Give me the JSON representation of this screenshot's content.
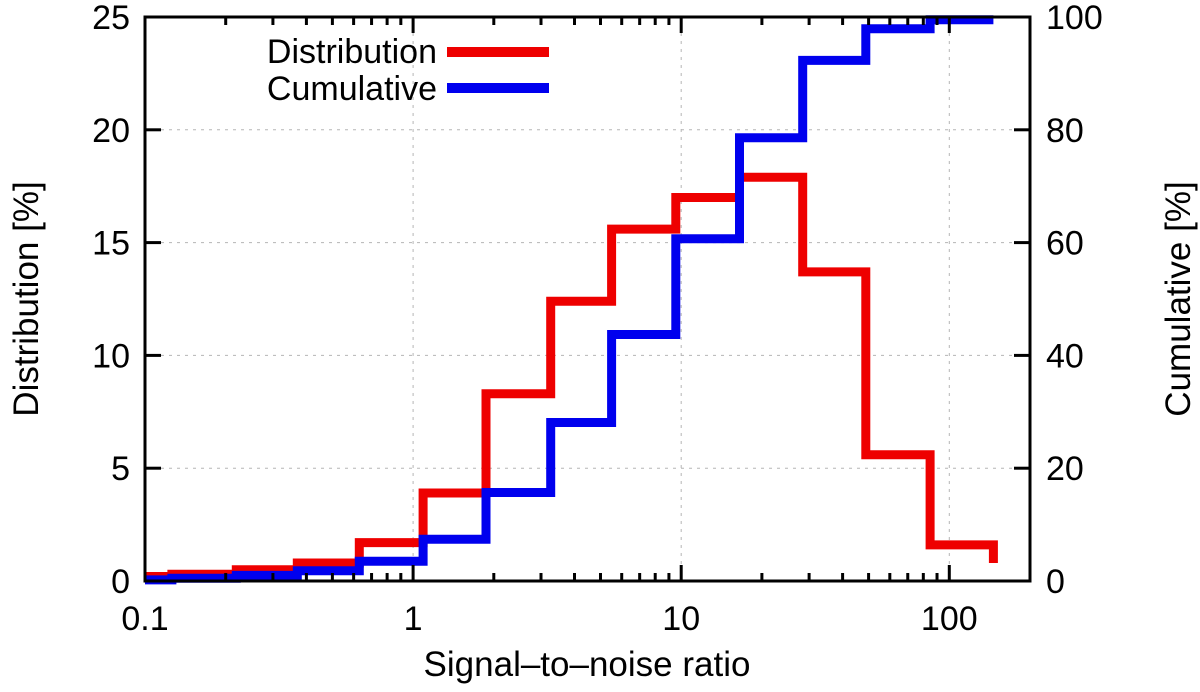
{
  "figure": {
    "background": "#ffffff",
    "frame_color": "#000000",
    "grid_color": "#b5b5b5"
  },
  "legend": {
    "items": [
      {
        "label": "Distribution",
        "color": "#ee0000"
      },
      {
        "label": "Cumulative",
        "color": "#0000ee"
      }
    ]
  },
  "chart_data": {
    "type": "line",
    "subtype": "step-histogram",
    "title": "",
    "xlabel": "Signal–to–noise ratio",
    "ylabel_left": "Distribution [%]",
    "ylabel_right": "Cumulative [%]",
    "x_scale": "log",
    "xlim": [
      0.1,
      200
    ],
    "ylim_left": [
      0,
      25
    ],
    "ylim_right": [
      0,
      100
    ],
    "x_ticks": [
      0.1,
      1,
      10,
      100
    ],
    "x_tick_labels": [
      "0.1",
      "1",
      "10",
      "100"
    ],
    "y_ticks_left": [
      0,
      5,
      10,
      15,
      20,
      25
    ],
    "y_ticks_right": [
      0,
      20,
      40,
      60,
      80,
      100
    ],
    "grid": true,
    "legend_position": "top-left-inside",
    "bin_edges": [
      0.1,
      0.126,
      0.219,
      0.37,
      0.63,
      1.09,
      1.87,
      3.26,
      5.5,
      9.55,
      16.5,
      28.4,
      48.8,
      84.8,
      146
    ],
    "series": [
      {
        "name": "Distribution",
        "axis": "left",
        "color": "#ee0000",
        "values": [
          0.2,
          0.3,
          0.5,
          0.8,
          1.7,
          3.9,
          8.3,
          12.4,
          15.6,
          17.0,
          17.9,
          13.7,
          5.6,
          1.6
        ],
        "end_drop_to": 0.8
      },
      {
        "name": "Cumulative",
        "axis": "right",
        "color": "#0000ee",
        "values": [
          0.2,
          0.5,
          1.0,
          1.8,
          3.5,
          7.4,
          15.7,
          28.1,
          43.7,
          60.7,
          78.6,
          92.3,
          97.9,
          99.5
        ],
        "end_drop_to": null
      }
    ]
  }
}
